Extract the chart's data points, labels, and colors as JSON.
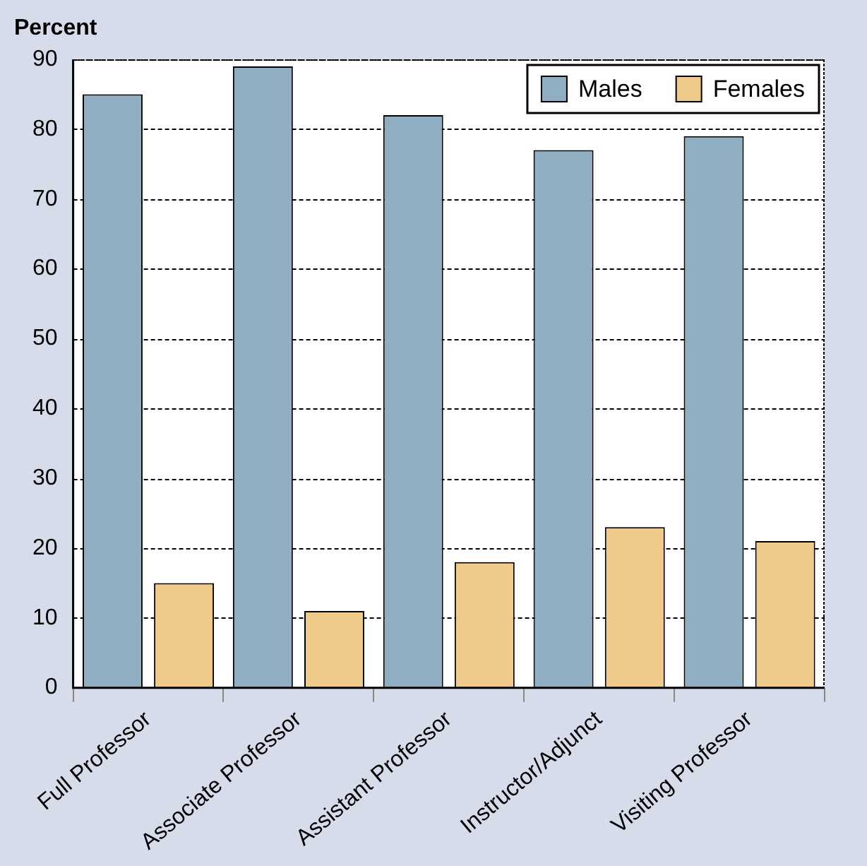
{
  "chart_data": {
    "type": "bar",
    "ylabel": "Percent",
    "categories": [
      "Full Professor",
      "Associate Professor",
      "Assistant Professor",
      "Instructor/Adjunct",
      "Visiting Professor"
    ],
    "series": [
      {
        "name": "Males",
        "color": "#8faec1",
        "values": [
          85,
          89,
          82,
          77,
          79
        ]
      },
      {
        "name": "Females",
        "color": "#efca8a",
        "values": [
          15,
          11,
          18,
          23,
          21
        ]
      }
    ],
    "ylim": [
      0,
      90
    ],
    "yticks": [
      0,
      10,
      20,
      30,
      40,
      50,
      60,
      70,
      80,
      90
    ],
    "grid": "y",
    "legend": "top right"
  }
}
